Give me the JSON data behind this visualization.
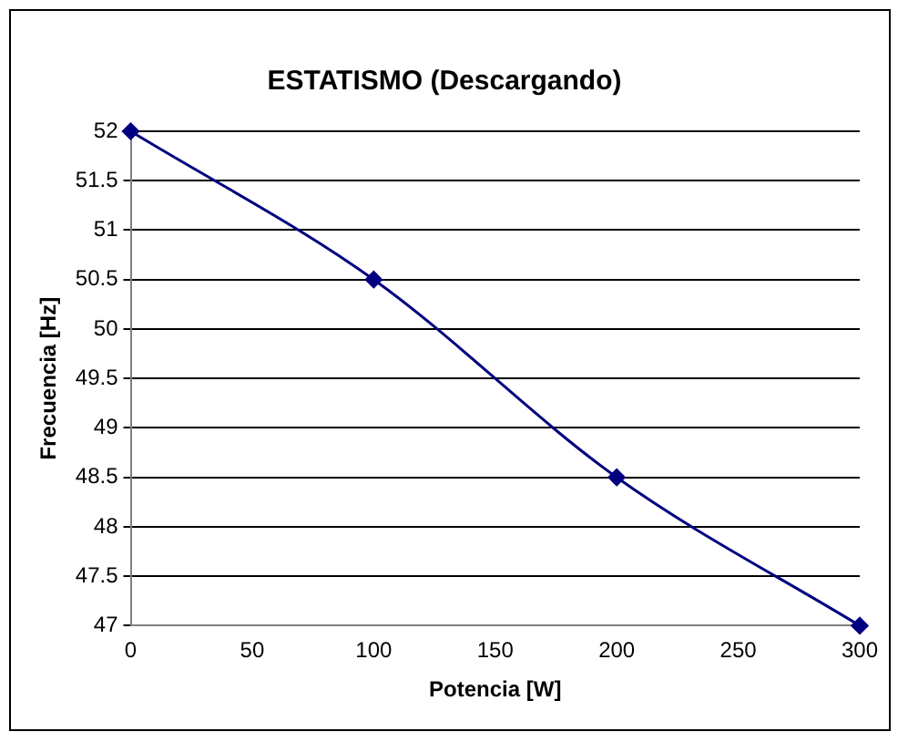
{
  "chart_data": {
    "type": "line",
    "title": "ESTATISMO (Descargando)",
    "xlabel": "Potencia [W]",
    "ylabel": "Frecuencia [Hz]",
    "x": [
      0,
      100,
      200,
      300
    ],
    "series": [
      {
        "color": "#000080",
        "values": [
          52,
          50.5,
          48.5,
          47
        ]
      }
    ],
    "xlim": [
      0,
      300
    ],
    "xticks": [
      0,
      50,
      100,
      150,
      200,
      250,
      300
    ],
    "ylim": [
      47,
      52
    ],
    "yticks": [
      47,
      47.5,
      48,
      48.5,
      49,
      49.5,
      50,
      50.5,
      51,
      51.5,
      52
    ],
    "grid": "y",
    "legend": false,
    "marker": "diamond",
    "line_style": "solid"
  }
}
